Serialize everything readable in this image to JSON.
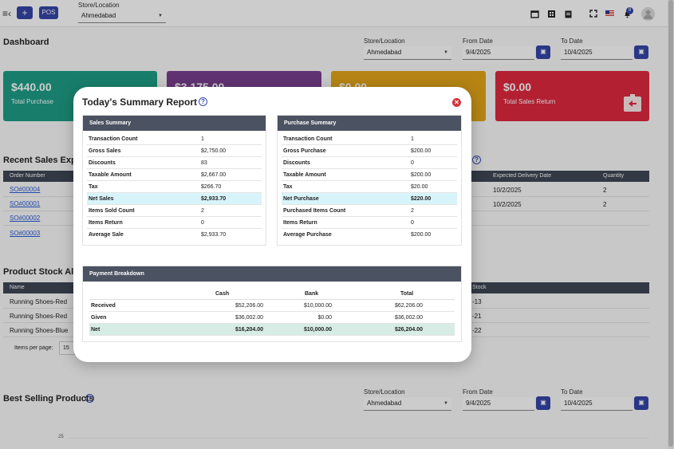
{
  "topbar": {
    "pos_label": "POS",
    "add_label": "+",
    "store_label": "Store/Location",
    "store_value": "Ahmedabad",
    "notif_count": "8"
  },
  "dashboard": {
    "title": "Dashboard",
    "filters": {
      "store_label": "Store/Location",
      "store_value": "Ahmedabad",
      "from_label": "From Date",
      "from_value": "9/4/2025",
      "to_label": "To Date",
      "to_value": "10/4/2025"
    },
    "cards": [
      {
        "amount": "$440.00",
        "label": "Total Purchase",
        "color": "#1e9e86"
      },
      {
        "amount": "$3,175.00",
        "label": "",
        "color": "#7a3f8f"
      },
      {
        "amount": "$0.00",
        "label": "",
        "color": "#e3a51a"
      },
      {
        "amount": "$0.00",
        "label": "Total Sales Return",
        "color": "#e0283f"
      }
    ]
  },
  "recent_sales": {
    "title": "Recent Sales Expec",
    "col_order": "Order Number",
    "col_delivery": "Expected Delivery Date",
    "col_qty": "Quantity",
    "rows": [
      {
        "order": "SO#00004",
        "date": "10/2/2025",
        "qty": "2"
      },
      {
        "order": "SO#00001",
        "date": "10/2/2025",
        "qty": "2"
      },
      {
        "order": "SO#00002",
        "date": "",
        "qty": ""
      },
      {
        "order": "SO#00003",
        "date": "",
        "qty": ""
      }
    ]
  },
  "stock_alert": {
    "title": "Product Stock Aler",
    "col_name": "Name",
    "col_stock": "Stock",
    "rows": [
      {
        "name": "Running Shoes-Red",
        "stock": "-13"
      },
      {
        "name": "Running Shoes-Red",
        "stock": "-21"
      },
      {
        "name": "Running Shoes-Blue",
        "stock": "-22"
      }
    ],
    "items_per_page_label": "Items per page:",
    "items_per_page_value": "15"
  },
  "best_selling": {
    "title": "Best Selling Products",
    "store_label": "Store/Location",
    "store_value": "Ahmedabad",
    "from_label": "From Date",
    "from_value": "9/4/2025",
    "to_label": "To Date",
    "to_value": "10/4/2025",
    "axis_tick": "25"
  },
  "modal": {
    "title": "Today's Summary Report",
    "sales": {
      "header": "Sales Summary",
      "rows": [
        {
          "k": "Transaction Count",
          "v": "1"
        },
        {
          "k": "Gross Sales",
          "v": "$2,750.00"
        },
        {
          "k": "Discounts",
          "v": "83"
        },
        {
          "k": "Taxable Amount",
          "v": "$2,667.00"
        },
        {
          "k": "Tax",
          "v": "$266.70"
        },
        {
          "k": "Net Sales",
          "v": "$2,933.70"
        },
        {
          "k": "Items Sold Count",
          "v": "2"
        },
        {
          "k": "Items Return",
          "v": "0"
        },
        {
          "k": "Average Sale",
          "v": "$2,933.70"
        }
      ]
    },
    "purchase": {
      "header": "Purchase Summary",
      "rows": [
        {
          "k": "Transaction Count",
          "v": "1"
        },
        {
          "k": "Gross Purchase",
          "v": "$200.00"
        },
        {
          "k": "Discounts",
          "v": "0"
        },
        {
          "k": "Taxable Amount",
          "v": "$200.00"
        },
        {
          "k": "Tax",
          "v": "$20.00"
        },
        {
          "k": "Net Purchase",
          "v": "$220.00"
        },
        {
          "k": "Purchased Items Count",
          "v": "2"
        },
        {
          "k": "Items Return",
          "v": "0"
        },
        {
          "k": "Average Purchase",
          "v": "$200.00"
        }
      ]
    },
    "payment": {
      "header": "Payment Breakdown",
      "col_cash": "Cash",
      "col_bank": "Bank",
      "col_total": "Total",
      "rows": [
        {
          "label": "Received",
          "cash": "$52,206.00",
          "bank": "$10,000.00",
          "total": "$62,206.00"
        },
        {
          "label": "Given",
          "cash": "$36,002.00",
          "bank": "$0.00",
          "total": "$36,002.00"
        },
        {
          "label": "Net",
          "cash": "$16,204.00",
          "bank": "$10,000.00",
          "total": "$26,204.00"
        }
      ]
    }
  }
}
